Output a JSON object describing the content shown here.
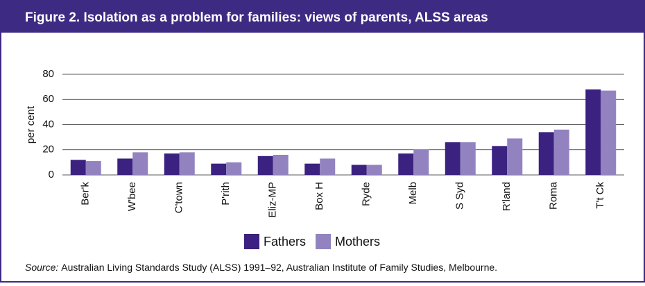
{
  "chart_data": {
    "type": "bar",
    "title": "Figure 2. Isolation as a problem for families: views of parents, ALSS areas",
    "y_label": "per cent",
    "categories": [
      "Ber'k",
      "W'bee",
      "C'town",
      "P'rith",
      "Eliz-MP",
      "Box H",
      "Ryde",
      "Melb",
      "S Syd",
      "R'land",
      "Roma",
      "T't Ck"
    ],
    "series": [
      {
        "name": "Fathers",
        "color": "#3b2180",
        "values": [
          12,
          13,
          17,
          9,
          15,
          9,
          8,
          17,
          26,
          23,
          34,
          68
        ]
      },
      {
        "name": "Mothers",
        "color": "#9283c0",
        "values": [
          11,
          18,
          18,
          10,
          16,
          13,
          8,
          20,
          26,
          29,
          36,
          67
        ]
      }
    ],
    "ylim": [
      0,
      80
    ],
    "yticks": [
      0,
      20,
      40,
      60,
      80
    ],
    "grid": true,
    "legend": "bottom"
  },
  "source": {
    "label": "Source:",
    "text": "Australian Living Standards Study (ALSS) 1991–92, Australian Institute of Family Studies, Melbourne."
  }
}
